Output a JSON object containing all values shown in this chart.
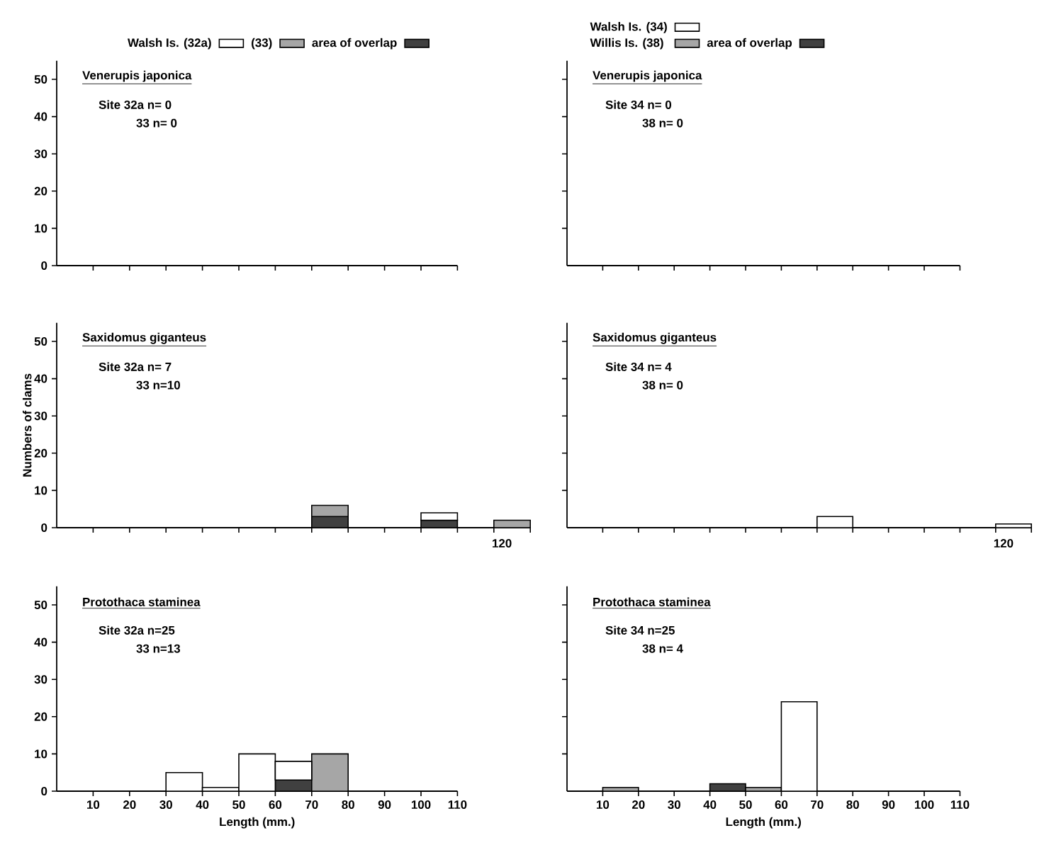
{
  "chart_data": [
    {
      "type": "bar",
      "title": "Venerupis japonica",
      "annotations": [
        "Site 32a n= 0",
        "33 n= 0"
      ],
      "x": [
        5,
        15,
        25,
        35,
        45,
        55,
        65,
        75,
        85,
        95,
        105
      ],
      "series": [
        {
          "name": "area of overlap",
          "color": "#404040",
          "values": [
            0,
            0,
            0,
            0,
            0,
            0,
            0,
            0,
            0,
            0,
            0
          ]
        },
        {
          "name": "(33)",
          "color": "#a6a6a6",
          "values": [
            0,
            0,
            0,
            0,
            0,
            0,
            0,
            0,
            0,
            0,
            0
          ]
        },
        {
          "name": "Walsh Is. (32a)",
          "color": "#ffffff",
          "values": [
            0,
            0,
            0,
            0,
            0,
            0,
            0,
            0,
            0,
            0,
            0
          ]
        }
      ],
      "stacked": true,
      "xlim": [
        0,
        110
      ],
      "ylim": [
        0,
        55
      ],
      "xticks": [
        10,
        20,
        30,
        40,
        50,
        60,
        70,
        80,
        90,
        100,
        110
      ],
      "yticks": [
        0,
        10,
        20,
        30,
        40,
        50
      ],
      "tick_labels": "y",
      "legend": "top"
    },
    {
      "type": "bar",
      "title": "Saxidomus giganteus",
      "annotations": [
        "Site 32a n= 7",
        "33 n=10",
        "120"
      ],
      "ylabel": "Numbers of clams",
      "x": [
        5,
        15,
        25,
        35,
        45,
        55,
        65,
        75,
        85,
        95,
        105,
        115,
        125
      ],
      "series": [
        {
          "color": "#404040",
          "values": [
            0,
            0,
            0,
            0,
            0,
            0,
            0,
            3,
            0,
            0,
            2,
            0,
            0
          ]
        },
        {
          "color": "#a6a6a6",
          "values": [
            0,
            0,
            0,
            0,
            0,
            0,
            0,
            3,
            0,
            0,
            0,
            0,
            2
          ]
        },
        {
          "color": "#ffffff",
          "values": [
            0,
            0,
            0,
            0,
            0,
            0,
            0,
            0,
            0,
            0,
            2,
            0,
            0
          ]
        }
      ],
      "stacked": true,
      "xlim": [
        0,
        130
      ],
      "ylim": [
        0,
        55
      ],
      "xticks": [
        10,
        20,
        30,
        40,
        50,
        60,
        70,
        80,
        90,
        100,
        110,
        120,
        130
      ],
      "yticks": [
        0,
        10,
        20,
        30,
        40,
        50
      ],
      "tick_labels": "y"
    },
    {
      "type": "bar",
      "title": "Protothaca staminea",
      "annotations": [
        "Site 32a n=25",
        "33 n=13"
      ],
      "xlabel": "Length (mm.)",
      "x": [
        5,
        15,
        25,
        35,
        45,
        55,
        65,
        75,
        85,
        95,
        105
      ],
      "series": [
        {
          "color": "#404040",
          "values": [
            0,
            0,
            0,
            0,
            0,
            0,
            3,
            0,
            0,
            0,
            0
          ]
        },
        {
          "color": "#a6a6a6",
          "values": [
            0,
            0,
            0,
            0,
            0,
            0,
            0,
            10,
            0,
            0,
            0
          ]
        },
        {
          "color": "#ffffff",
          "values": [
            0,
            0,
            0,
            5,
            1,
            10,
            5,
            0,
            0,
            0,
            0
          ]
        }
      ],
      "stacked": true,
      "xlim": [
        0,
        110
      ],
      "ylim": [
        0,
        55
      ],
      "xticks": [
        10,
        20,
        30,
        40,
        50,
        60,
        70,
        80,
        90,
        100,
        110
      ],
      "yticks": [
        0,
        10,
        20,
        30,
        40,
        50
      ]
    },
    {
      "type": "bar",
      "title": "Venerupis japonica",
      "annotations": [
        "Site 34 n= 0",
        "38 n= 0"
      ],
      "x": [
        5,
        15,
        25,
        35,
        45,
        55,
        65,
        75,
        85,
        95,
        105
      ],
      "series": [
        {
          "name": "area of overlap",
          "color": "#404040",
          "values": [
            0,
            0,
            0,
            0,
            0,
            0,
            0,
            0,
            0,
            0,
            0
          ]
        },
        {
          "name": "Willis Is. (38)",
          "color": "#a6a6a6",
          "values": [
            0,
            0,
            0,
            0,
            0,
            0,
            0,
            0,
            0,
            0,
            0
          ]
        },
        {
          "name": "Walsh Is. (34)",
          "color": "#ffffff",
          "values": [
            0,
            0,
            0,
            0,
            0,
            0,
            0,
            0,
            0,
            0,
            0
          ]
        }
      ],
      "stacked": true,
      "xlim": [
        0,
        110
      ],
      "ylim": [
        0,
        55
      ],
      "xticks": [
        10,
        20,
        30,
        40,
        50,
        60,
        70,
        80,
        90,
        100,
        110
      ],
      "yticks": [
        10,
        20,
        30,
        40,
        50
      ],
      "tick_labels": false,
      "legend": "top"
    },
    {
      "type": "bar",
      "title": "Saxidomus giganteus",
      "annotations": [
        "Site 34 n= 4",
        "38 n= 0",
        "120"
      ],
      "x": [
        5,
        15,
        25,
        35,
        45,
        55,
        65,
        75,
        85,
        95,
        105,
        115,
        125
      ],
      "series": [
        {
          "color": "#ffffff",
          "values": [
            0,
            0,
            0,
            0,
            0,
            0,
            0,
            3,
            0,
            0,
            0,
            0,
            1
          ]
        }
      ],
      "xlim": [
        0,
        130
      ],
      "ylim": [
        0,
        55
      ],
      "xticks": [
        10,
        20,
        30,
        40,
        50,
        60,
        70,
        80,
        90,
        100,
        110,
        120,
        130
      ],
      "yticks": [
        10,
        20,
        30,
        40,
        50
      ],
      "tick_labels": false
    },
    {
      "type": "bar",
      "title": "Protothaca staminea",
      "annotations": [
        "Site 34 n=25",
        "38 n= 4"
      ],
      "xlabel": "Length (mm.)",
      "x": [
        5,
        15,
        25,
        35,
        45,
        55,
        65,
        75,
        85,
        95,
        105
      ],
      "series": [
        {
          "color": "#404040",
          "values": [
            0,
            0,
            0,
            0,
            2,
            0,
            0,
            0,
            0,
            0,
            0
          ]
        },
        {
          "color": "#a6a6a6",
          "values": [
            0,
            1,
            0,
            0,
            0,
            1,
            0,
            0,
            0,
            0,
            0
          ]
        },
        {
          "color": "#ffffff",
          "values": [
            0,
            0,
            0,
            0,
            0,
            0,
            24,
            0,
            0,
            0,
            0
          ]
        }
      ],
      "stacked": true,
      "xlim": [
        0,
        110
      ],
      "ylim": [
        0,
        55
      ],
      "xticks": [
        10,
        20,
        30,
        40,
        50,
        60,
        70,
        80,
        90,
        100,
        110
      ],
      "yticks": [
        10,
        20,
        30,
        40,
        50
      ],
      "tick_labels": "x"
    }
  ]
}
